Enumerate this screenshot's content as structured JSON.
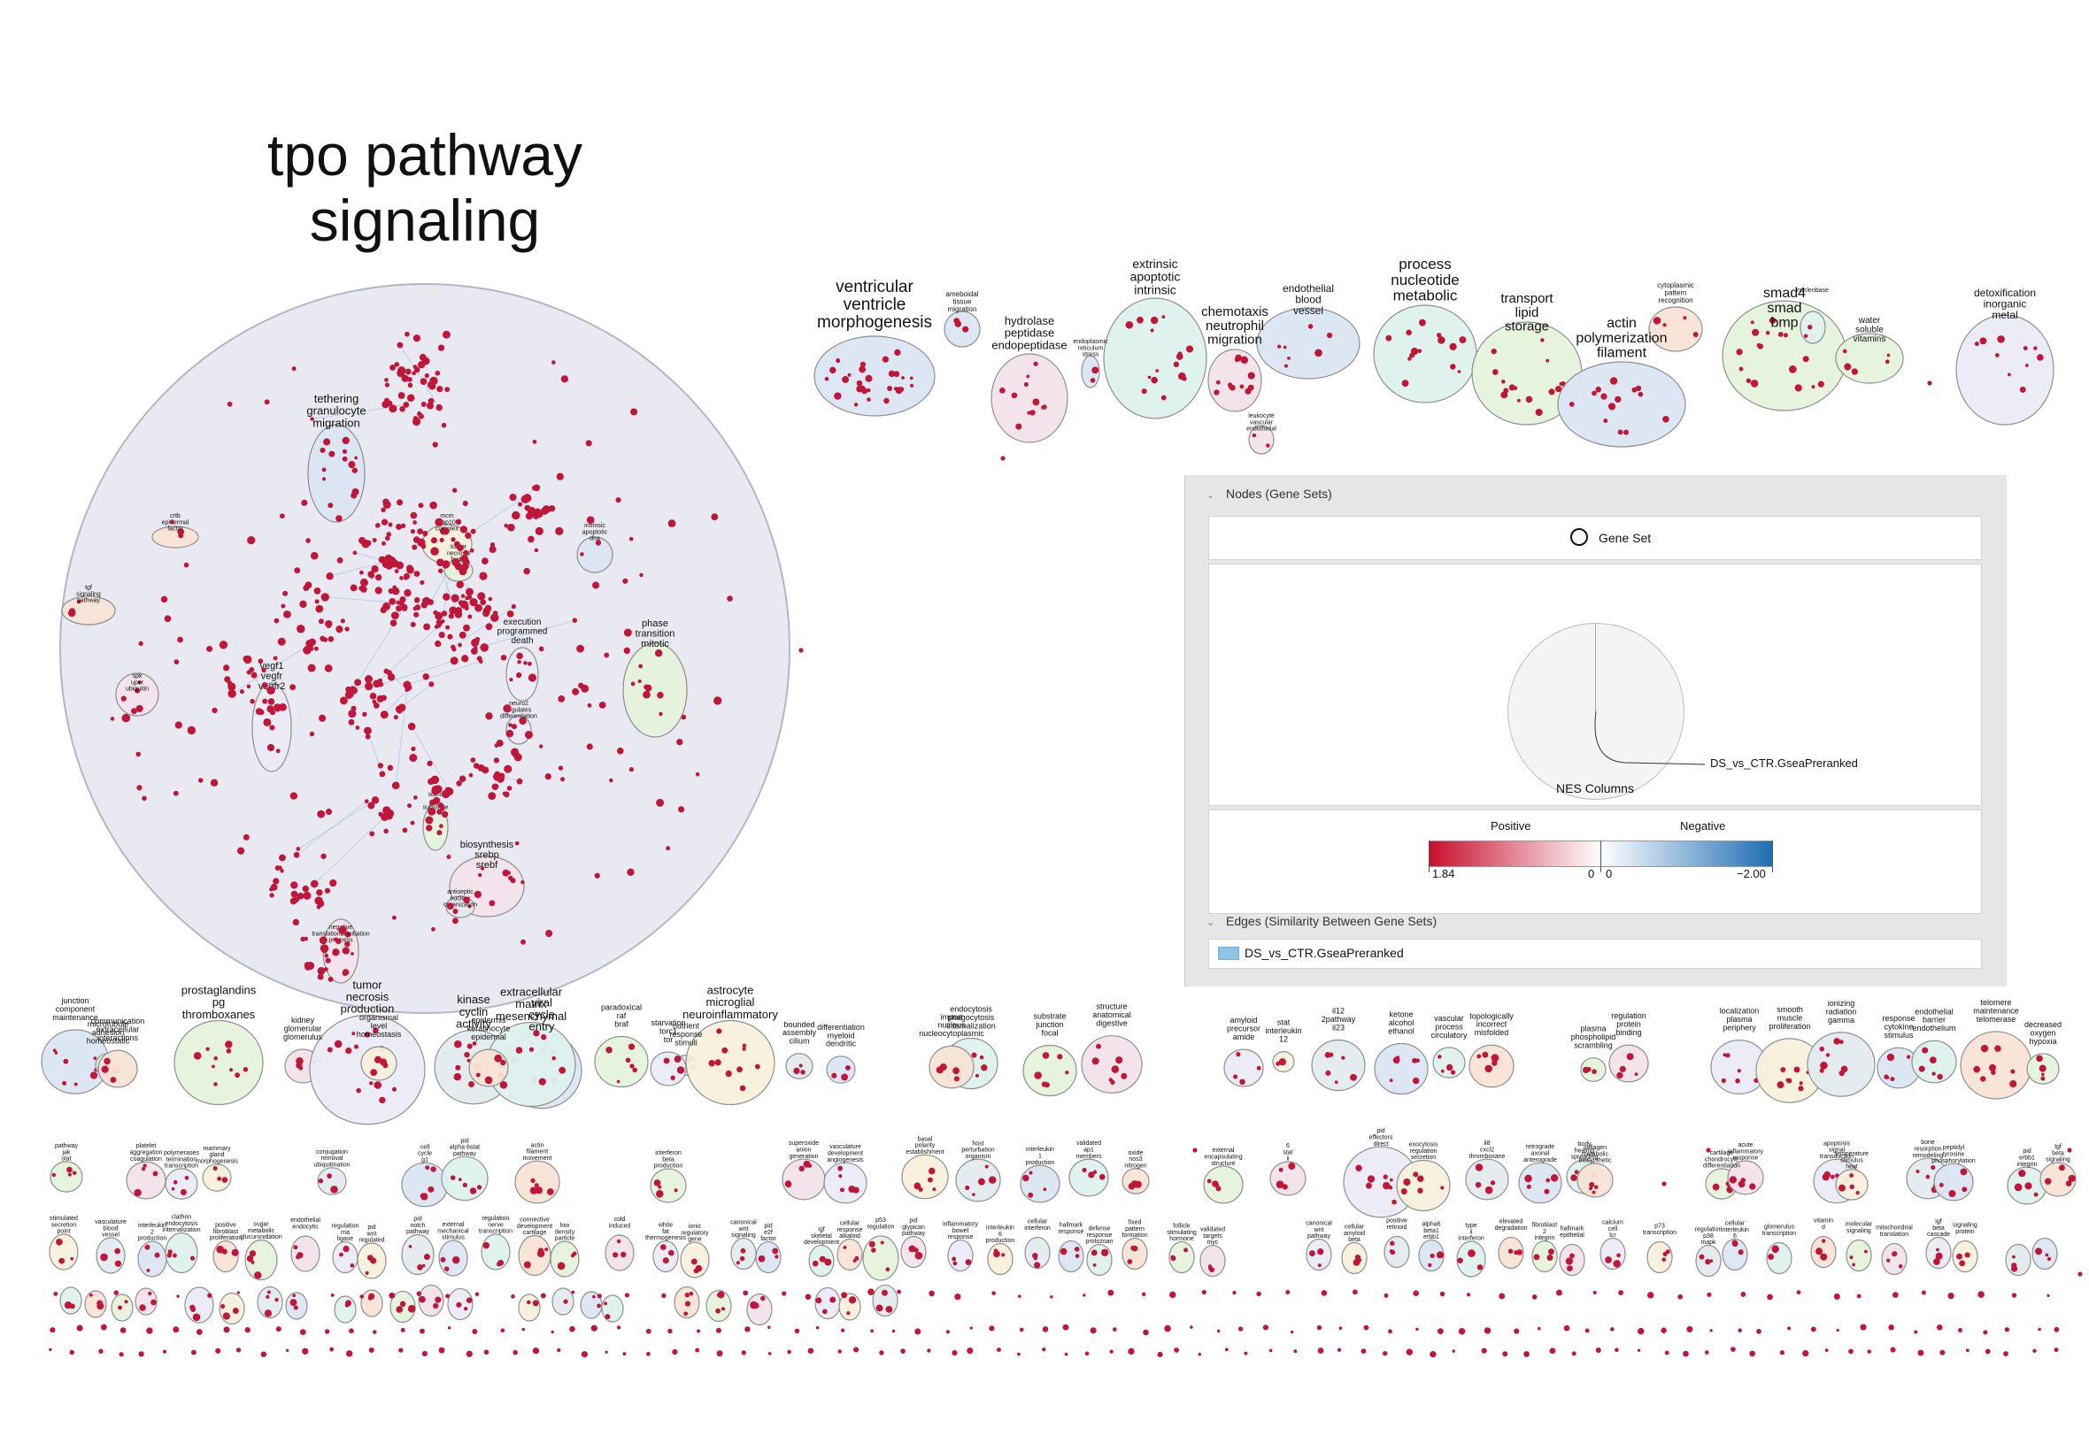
{
  "title": "tpo pathway signaling",
  "title_lines": [
    "tpo pathway",
    "signaling"
  ],
  "colors": {
    "node": "#c0163a",
    "edge": "#8fb7d6",
    "main_cluster": "#e9e9f2",
    "cluster_fills": [
      "#dce6f4",
      "#dff2ee",
      "#f8e4d6",
      "#e5f3dc",
      "#f3e3ec",
      "#ecebf6",
      "#f7f1dc",
      "#e4ebef"
    ]
  },
  "main_cluster_labels": [
    "tethering granulocyte migration",
    "crtb epidermal factor",
    "mcm nap10 complex",
    "tumor necrosis factor",
    "intrinsic apoptotic dna",
    "tgf signaling pathway",
    "execution programmed death",
    "phase transition mitotic",
    "spk uper ubiquitin",
    "vegf1 vegfr vegfr2",
    "neuro2 regulates differentiation",
    "sumo e3 substrate",
    "biosynthesis srebp srebf",
    "negative translational initiation progress",
    "antiseptic nuclear organization"
  ],
  "top_clusters": [
    "ventricular ventricle morphogenesis",
    "ameboidal tissue migration",
    "hydrolase peptidase endopeptidase",
    "endoplasmic reticulum stress",
    "extrinsic apoptotic intrinsic",
    "chemotaxis neutrophil migration",
    "leukocyte vascular endothelial",
    "endothelial blood vessel",
    "process nucleotide metabolic",
    "transport lipid storage",
    "actin polymerization filament",
    "cytoplasmic pattern recognition",
    "smad4 smad bmp",
    "nucleobase",
    "water soluble vitamins",
    "detoxification inorganic metal"
  ],
  "bottom_clusters": [
    "junction component maintenance",
    "microtubule adhesion homeostatic",
    "communication extracellular interactions",
    "prostaglandins pg thromboxanes",
    "kidney glomerular glomerulus",
    "tumor necrosis production",
    "organismal level homeostasis",
    "kinase cyclin activity",
    "viral cycle entry",
    "extracellular matrix mesenchymal",
    "epidermis keratinocyte epidermal",
    "paradoxical raf braf",
    "nutrient response stimuli",
    "starvation torc1 tor",
    "astrocyte microglial neuroinflammatory",
    "bounded assembly cilium",
    "differentiation myeloid dendritic",
    "endocytosis phagocytosis internalization",
    "import nucleus nucleocytoplasmic",
    "substrate junction focal",
    "structure anatomical digestive",
    "amyloid precursor amide",
    "stat interleukin 12",
    "il12 2pathway il23",
    "ketone alcohol ethanol",
    "vascular process circulatory",
    "topologically incorrect misfolded",
    "plasma phospholipid scrambling",
    "regulation protein binding",
    "localization plasma periphery",
    "smooth muscle proliferation",
    "ionizing radiation gamma",
    "response cytokine stimulus",
    "endothelial barrier endothelium",
    "telomere maintenance telomerase",
    "decreased oxygen hypoxia",
    "pathway jak stat",
    "platelet aggregation coagulation",
    "polymerases termination transcription",
    "mammary gland morphogenesis",
    "conjugation removal ubiquitination",
    "cell cycle g1",
    "pid alpha 6stat pathway",
    "actin filament movement",
    "interferon beta production",
    "superoxide anion generation",
    "vasculature development angiogenesis",
    "basal polarity establishment",
    "host perturbation organism",
    "interleukin 1 production",
    "validated ap1 members",
    "oxide nos3 nitrogen",
    "external encapsulating structure",
    "6 stat ii",
    "pid effectors direct",
    "exocytosis regulation secretion",
    "il8 cxcl2 thromboxane",
    "retrograde axonal anterograde",
    "body healing spreading",
    "collagen metabolic biosynthetic",
    "cartilage chondrocyte differentiation",
    "acute inflammatory response",
    "apoptosis signal transduction",
    "temperature stimulus heat",
    "bone resorption remodeling",
    "peptidyl tyrosine phosphorylation",
    "pid erbb1 integrin",
    "tgf beta signaling",
    "stimulated secretion point",
    "vasculature blood vessel",
    "interleukin 2 production",
    "clathrin endocytosis internalization",
    "positive fibroblast proliferation",
    "sugar metabolic glucuronidation",
    "endothelial endocytic",
    "regulation rna ligase",
    "pid wnt regulated",
    "pid notch pathway",
    "external mechanical stimulus",
    "regulation nerve transcription",
    "connective development cartilage",
    "low density particle",
    "cold induced",
    "white fat thermogenesis",
    "ionic regulatory gene",
    "canonical wnt signaling",
    "pid e2f factor",
    "igf skeletal development",
    "cellular response alkaloid",
    "p53 regulation",
    "pid glypican pathway",
    "inflammatory bowel response",
    "interleukin 6 production",
    "cellular interferon",
    "hallmark response",
    "defense response protozoan",
    "fixed pattern formation",
    "follicle stimulating hormone",
    "validated targets myc",
    "canonical wnt pathway",
    "cellular amyloid beta",
    "positive retinoid",
    "alpha6 beta1 erbb1",
    "type ii interferon",
    "elevated degradation",
    "fibroblast 2 integrin",
    "hallmark epithelial",
    "calcium cell lcr",
    "p73 transcription",
    "regulation p38 mapk",
    "cellular interleukin 6",
    "glomerulus transcription",
    "vitamin d",
    "molecular signaling",
    "mitochondrial translation",
    "igf beta cascade",
    "signaling protein"
  ],
  "legend": {
    "nodes_header": "Nodes (Gene Sets)",
    "gene_set_label": "Gene Set",
    "pie_callout": "DS_vs_CTR.GseaPreranked",
    "nes_columns_label": "NES Columns",
    "positive_label": "Positive",
    "negative_label": "Negative",
    "pos_max": "1.84",
    "pos_zero": "0",
    "neg_zero": "0",
    "neg_min": "−2.00",
    "edges_header": "Edges (Similarity Between Gene Sets)",
    "edge_item": "DS_vs_CTR.GseaPreranked",
    "positive_color": "#c8102e",
    "negative_color": "#1f6eb4",
    "edge_color": "#8ec4e6"
  }
}
